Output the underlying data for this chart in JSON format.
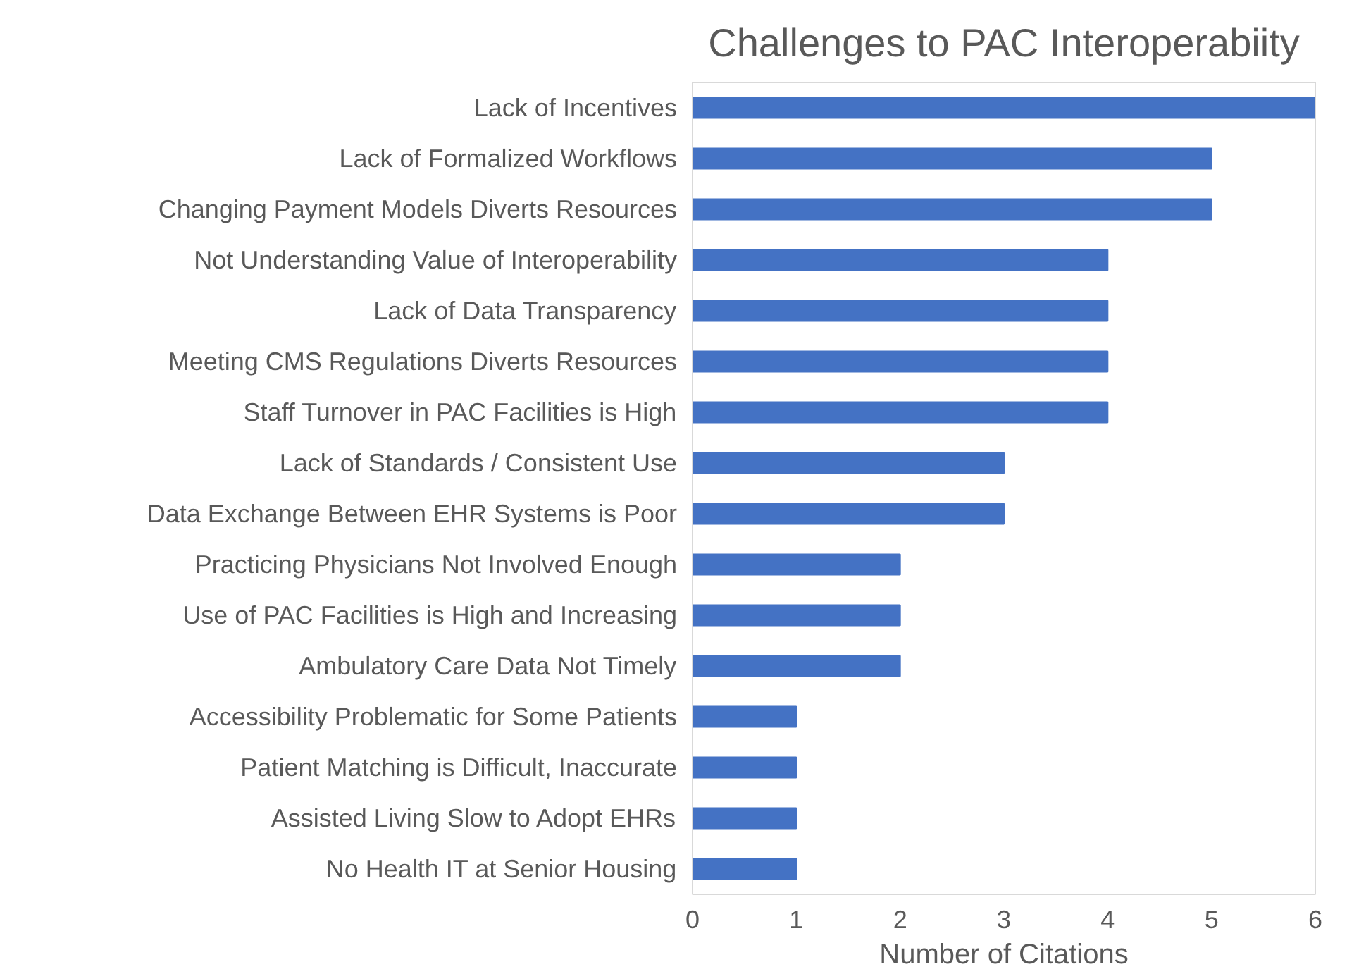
{
  "chart_data": {
    "type": "bar",
    "orientation": "horizontal",
    "title": "Challenges to PAC Interoperabiity",
    "xlabel": "Number of Citations",
    "categories": [
      "Lack of Incentives",
      "Lack of Formalized Workflows",
      "Changing Payment Models Diverts Resources",
      "Not Understanding Value of Interoperability",
      "Lack of Data Transparency",
      "Meeting CMS Regulations Diverts Resources",
      "Staff Turnover in PAC Facilities is High",
      "Lack of Standards / Consistent Use",
      "Data Exchange Between EHR Systems is Poor",
      "Practicing Physicians Not Involved Enough",
      "Use of PAC Facilities is High and Increasing",
      "Ambulatory Care Data Not Timely",
      "Accessibility Problematic for Some Patients",
      "Patient Matching is Difficult, Inaccurate",
      "Assisted Living Slow to Adopt EHRs",
      "No Health IT at Senior Housing"
    ],
    "values": [
      6,
      5,
      5,
      4,
      4,
      4,
      4,
      3,
      3,
      2,
      2,
      2,
      1,
      1,
      1,
      1
    ],
    "color": "#4472c4",
    "xlim": [
      0,
      6
    ],
    "xticks": [
      0,
      1,
      2,
      3,
      4,
      5,
      6
    ],
    "grid": false
  }
}
